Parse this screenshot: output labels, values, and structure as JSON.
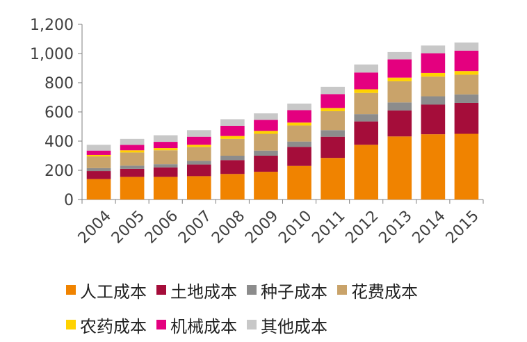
{
  "chart_data": {
    "type": "bar",
    "stacked": true,
    "categories": [
      "2004",
      "2005",
      "2006",
      "2007",
      "2008",
      "2009",
      "2010",
      "2011",
      "2012",
      "2013",
      "2014",
      "2015"
    ],
    "ylim": [
      0,
      1200
    ],
    "yticks": [
      0,
      200,
      400,
      600,
      800,
      1000,
      1200
    ],
    "ytick_labels": [
      "0",
      "200",
      "400",
      "600",
      "800",
      "1,000",
      "1,200"
    ],
    "grid": false,
    "legend_position": "bottom",
    "series": [
      {
        "name": "人工成本",
        "color": "#F08300",
        "values": [
          140,
          155,
          155,
          160,
          175,
          190,
          230,
          285,
          375,
          432,
          447,
          450
        ]
      },
      {
        "name": "土地成本",
        "color": "#A50D3A",
        "values": [
          55,
          55,
          65,
          80,
          95,
          110,
          130,
          145,
          160,
          178,
          203,
          212
        ]
      },
      {
        "name": "种子成本",
        "color": "#8C8C8C",
        "values": [
          20,
          22,
          22,
          25,
          30,
          35,
          37,
          45,
          50,
          55,
          57,
          58
        ]
      },
      {
        "name": "花费成本",
        "color": "#C9A36A",
        "values": [
          80,
          90,
          95,
          95,
          115,
          115,
          110,
          130,
          145,
          145,
          135,
          135
        ]
      },
      {
        "name": "农药成本",
        "color": "#FFD200",
        "values": [
          10,
          15,
          15,
          15,
          20,
          20,
          20,
          22,
          25,
          25,
          25,
          25
        ]
      },
      {
        "name": "机械成本",
        "color": "#E4007F",
        "values": [
          30,
          37,
          43,
          55,
          70,
          75,
          85,
          95,
          115,
          125,
          135,
          140
        ]
      },
      {
        "name": "其他成本",
        "color": "#C8C8C8",
        "values": [
          40,
          41,
          45,
          45,
          45,
          45,
          45,
          50,
          55,
          50,
          53,
          55
        ]
      }
    ]
  }
}
